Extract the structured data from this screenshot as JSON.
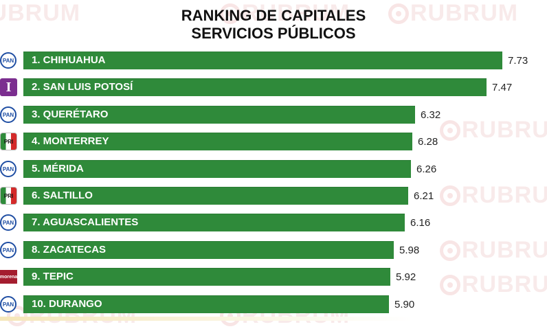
{
  "watermark_text": "RUBRUM",
  "colors": {
    "bar": "#2f8a3a",
    "title": "#111111",
    "watermark": "#f3d9d9"
  },
  "chart_data": {
    "type": "bar",
    "orientation": "horizontal",
    "title": "RANKING DE CAPITALES",
    "subtitle": "SERVICIOS PÚBLICOS",
    "categories": [
      "1. CHIHUAHUA",
      "2. SAN LUIS POTOSÍ",
      "3. QUERÉTARO",
      "4. MONTERREY",
      "5. MÉRIDA",
      "6. SALTILLO",
      "7. AGUASCALIENTES",
      "8. ZACATECAS",
      "9. TEPIC",
      "10. DURANGO"
    ],
    "values": [
      7.73,
      7.47,
      6.32,
      6.28,
      6.26,
      6.21,
      6.16,
      5.98,
      5.92,
      5.9
    ],
    "value_labels": [
      "7.73",
      "7.47",
      "6.32",
      "6.28",
      "6.26",
      "6.21",
      "6.16",
      "5.98",
      "5.92",
      "5.90"
    ],
    "party_logos": [
      {
        "type": "pan",
        "text": "PAN"
      },
      {
        "type": "pt",
        "text": "I"
      },
      {
        "type": "pan",
        "text": "PAN"
      },
      {
        "type": "pri",
        "text": "PRI"
      },
      {
        "type": "pan",
        "text": "PAN"
      },
      {
        "type": "pri",
        "text": "PRI"
      },
      {
        "type": "pan",
        "text": "PAN"
      },
      {
        "type": "pan",
        "text": "PAN"
      },
      {
        "type": "morena",
        "text": "morena"
      },
      {
        "type": "pan",
        "text": "PAN"
      }
    ],
    "xlim": [
      0,
      7.73
    ],
    "grid": false,
    "legend": "none"
  }
}
